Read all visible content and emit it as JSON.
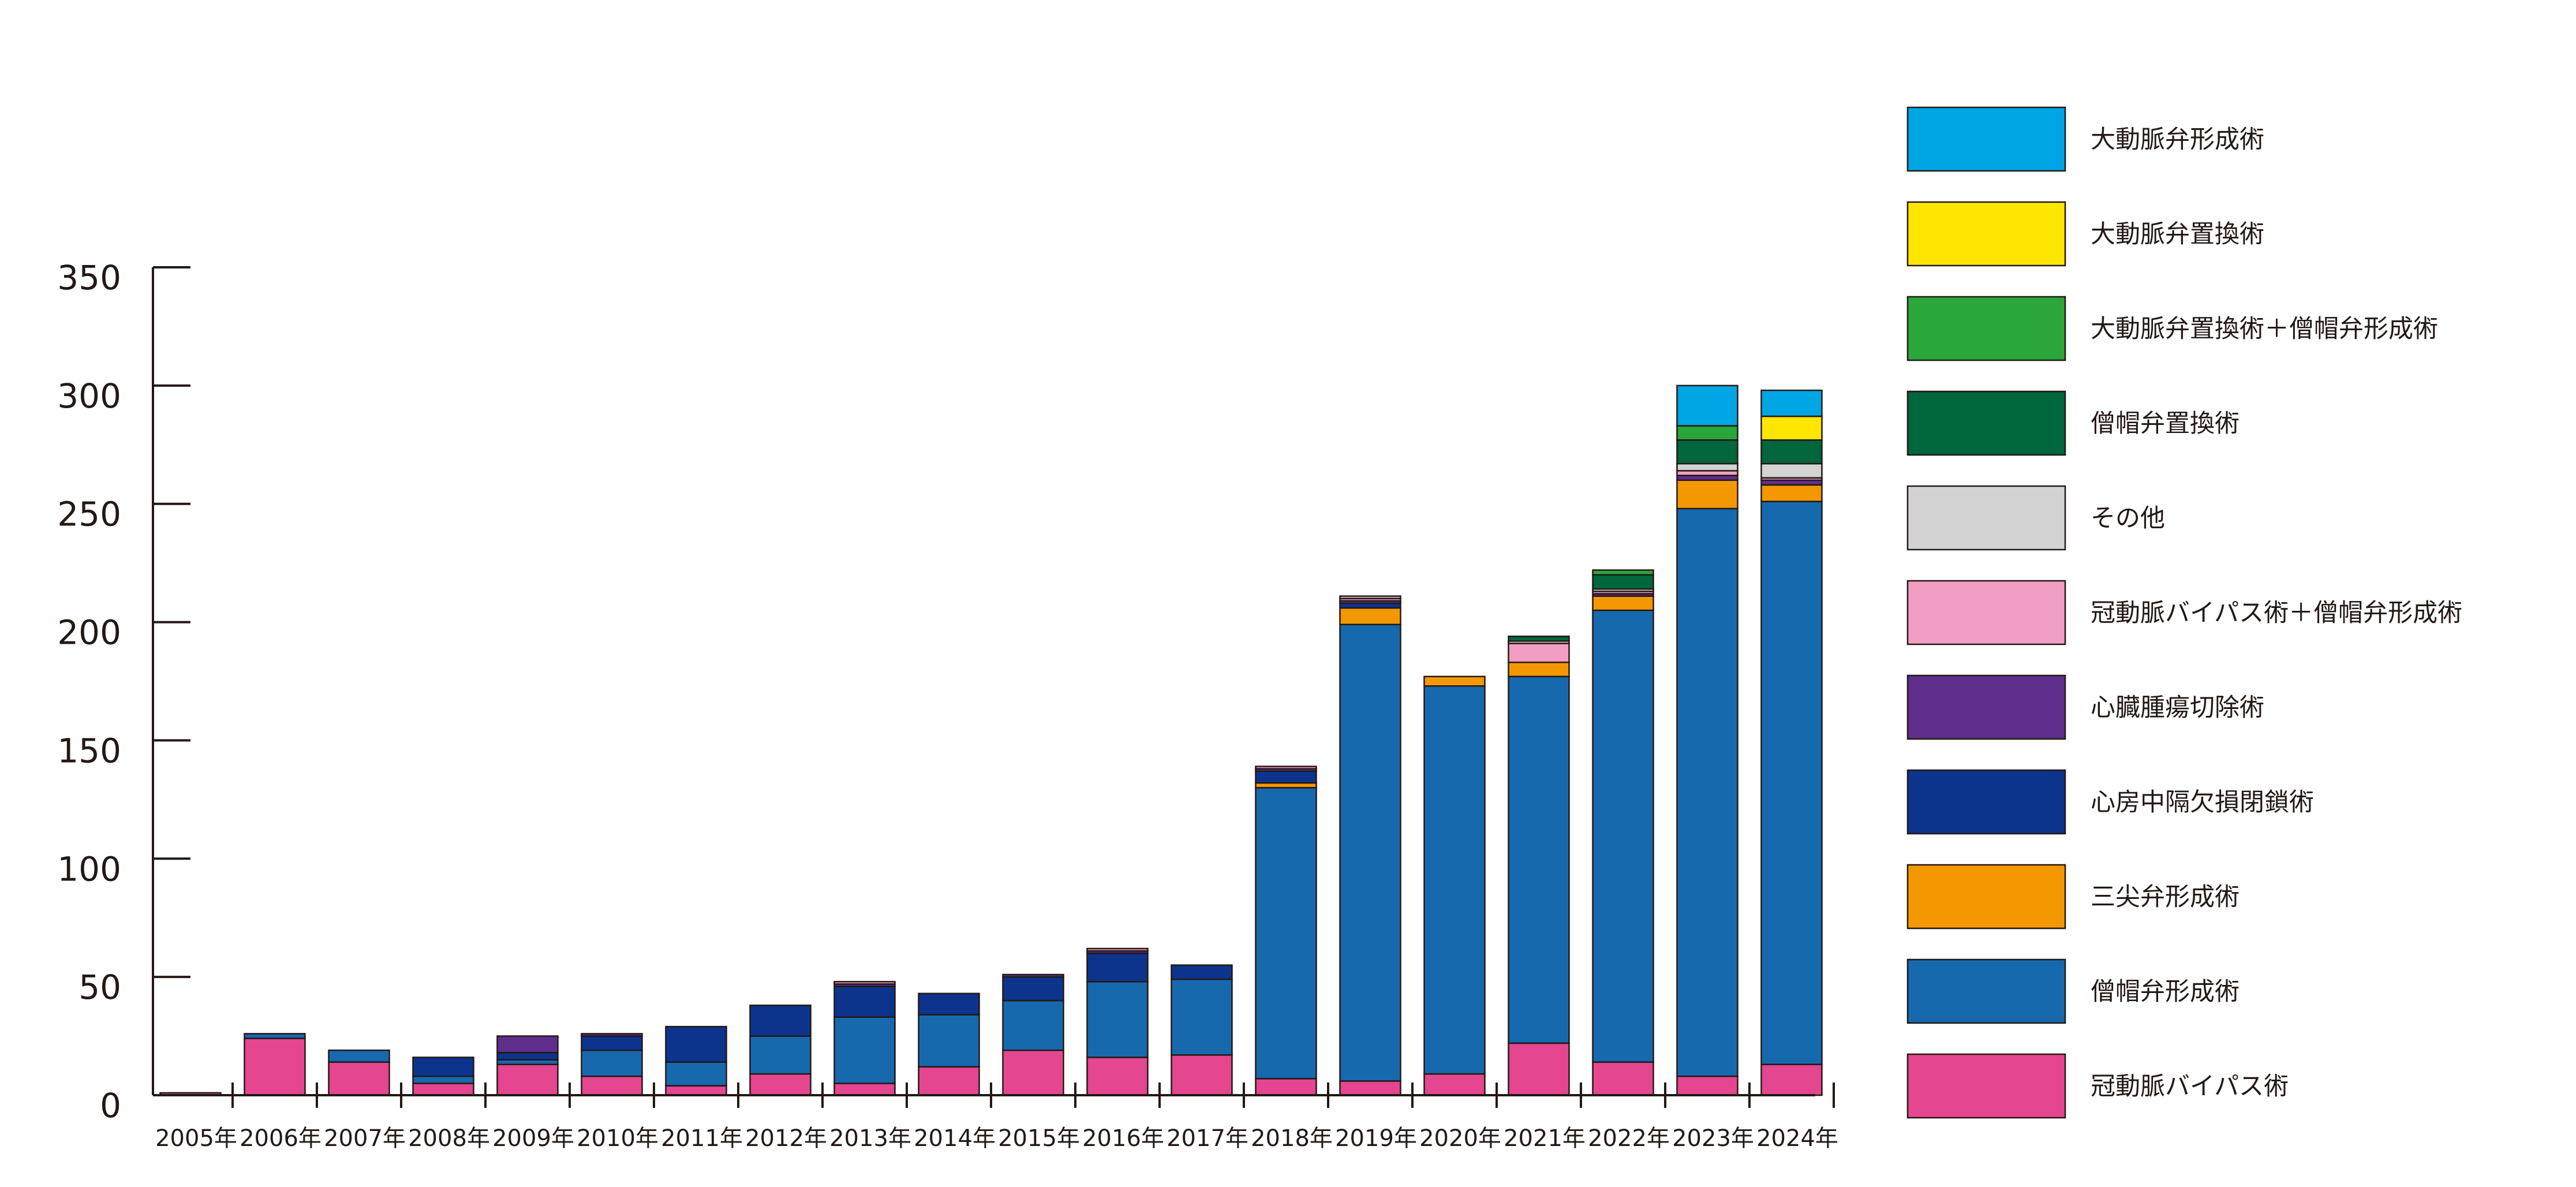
{
  "chart_data": {
    "type": "bar",
    "stacked": true,
    "title": "",
    "xlabel": "",
    "ylabel": "",
    "ylim": [
      0,
      350
    ],
    "yticks": [
      0,
      50,
      100,
      150,
      200,
      250,
      300,
      350
    ],
    "ytick_labels": [
      "0",
      "50",
      "100",
      "150",
      "200",
      "250",
      "300",
      "350"
    ],
    "grid": false,
    "legend_position": "right",
    "categories": [
      "2005年",
      "2006年",
      "2007年",
      "2008年",
      "2009年",
      "2010年",
      "2011年",
      "2012年",
      "2013年",
      "2014年",
      "2015年",
      "2016年",
      "2017年",
      "2018年",
      "2019年",
      "2020年",
      "2021年",
      "2022年",
      "2023年",
      "2024年"
    ],
    "series": [
      {
        "name": "冠動脈バイパス術",
        "color": "#E4468F",
        "values": [
          1,
          24,
          14,
          5,
          13,
          8,
          4,
          9,
          5,
          12,
          19,
          16,
          17,
          7,
          6,
          9,
          22,
          14,
          8,
          13
        ]
      },
      {
        "name": "僧帽弁形成術",
        "color": "#1769AE",
        "values": [
          0,
          2,
          5,
          3,
          2,
          11,
          10,
          16,
          28,
          22,
          21,
          32,
          32,
          123,
          193,
          164,
          155,
          191,
          240,
          238
        ]
      },
      {
        "name": "三尖弁形成術",
        "color": "#F39800",
        "values": [
          0,
          0,
          0,
          0,
          0,
          0,
          0,
          0,
          0,
          0,
          0,
          0,
          0,
          2,
          7,
          4,
          6,
          6,
          12,
          7
        ]
      },
      {
        "name": "心房中隔欠損閉鎖術",
        "color": "#0C348C",
        "values": [
          0,
          0,
          0,
          8,
          3,
          6,
          15,
          13,
          13,
          9,
          10,
          12,
          6,
          5,
          2,
          0,
          0,
          0,
          0,
          0
        ]
      },
      {
        "name": "心臓腫瘍切除術",
        "color": "#5F2E8C",
        "values": [
          0,
          0,
          0,
          0,
          7,
          1,
          0,
          0,
          1,
          0,
          1,
          1,
          0,
          1,
          1,
          0,
          0,
          1,
          2,
          2
        ]
      },
      {
        "name": "冠動脈バイパス術＋僧帽弁形成術",
        "color": "#F19EC2",
        "values": [
          0,
          0,
          0,
          0,
          0,
          0,
          0,
          0,
          1,
          0,
          0,
          1,
          0,
          1,
          1,
          0,
          8,
          1,
          2,
          1
        ]
      },
      {
        "name": "その他",
        "color": "#D3D3D3",
        "values": [
          0,
          0,
          0,
          0,
          0,
          0,
          0,
          0,
          0,
          0,
          0,
          0,
          0,
          0,
          1,
          0,
          1,
          1,
          3,
          6
        ]
      },
      {
        "name": "僧帽弁置換術",
        "color": "#00663C",
        "values": [
          0,
          0,
          0,
          0,
          0,
          0,
          0,
          0,
          0,
          0,
          0,
          0,
          0,
          0,
          0,
          0,
          2,
          6,
          10,
          10
        ]
      },
      {
        "name": "大動脈弁置換術＋僧帽弁形成術",
        "color": "#2BA63B",
        "values": [
          0,
          0,
          0,
          0,
          0,
          0,
          0,
          0,
          0,
          0,
          0,
          0,
          0,
          0,
          0,
          0,
          0,
          2,
          6,
          0
        ]
      },
      {
        "name": "大動脈弁置換術",
        "color": "#FFE600",
        "values": [
          0,
          0,
          0,
          0,
          0,
          0,
          0,
          0,
          0,
          0,
          0,
          0,
          0,
          0,
          0,
          0,
          0,
          0,
          0,
          10
        ]
      },
      {
        "name": "大動脈弁形成術",
        "color": "#00A6E4",
        "values": [
          0,
          0,
          0,
          0,
          0,
          0,
          0,
          0,
          0,
          0,
          0,
          0,
          0,
          0,
          0,
          0,
          0,
          0,
          17,
          11
        ]
      }
    ],
    "legend_order": [
      "大動脈弁形成術",
      "大動脈弁置換術",
      "大動脈弁置換術＋僧帽弁形成術",
      "僧帽弁置換術",
      "その他",
      "冠動脈バイパス術＋僧帽弁形成術",
      "心臓腫瘍切除術",
      "心房中隔欠損閉鎖術",
      "三尖弁形成術",
      "僧帽弁形成術",
      "冠動脈バイパス術"
    ]
  }
}
